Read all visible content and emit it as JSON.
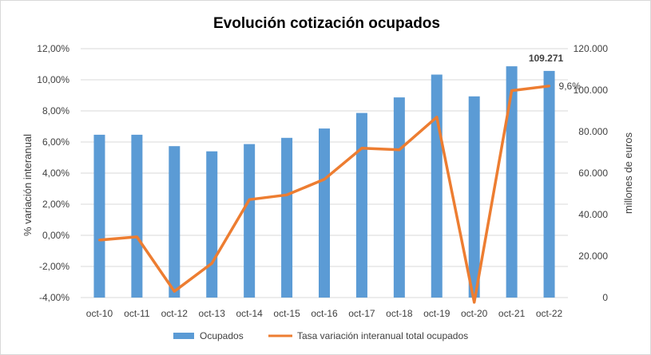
{
  "chart_data": {
    "type": "bar",
    "title": "Evolución cotización ocupados",
    "categories": [
      "oct-10",
      "oct-11",
      "oct-12",
      "oct-13",
      "oct-14",
      "oct-15",
      "oct-16",
      "oct-17",
      "oct-18",
      "oct-19",
      "oct-20",
      "oct-21",
      "oct-22"
    ],
    "series": [
      {
        "name": "Ocupados",
        "type": "bar",
        "axis": "right",
        "color": "#5B9BD5",
        "values": [
          78500,
          78500,
          73000,
          70500,
          74000,
          77000,
          81500,
          89000,
          96500,
          107500,
          97000,
          111500,
          109271
        ]
      },
      {
        "name": "Tasa variación interanual total ocupados",
        "type": "line",
        "axis": "left",
        "color": "#ED7D31",
        "values": [
          -0.3,
          -0.1,
          -3.6,
          -1.8,
          2.3,
          2.6,
          3.6,
          5.6,
          5.5,
          7.6,
          -4.3,
          9.3,
          9.6
        ]
      }
    ],
    "left_axis": {
      "label": "% variación interanual",
      "min": -4,
      "max": 12,
      "step": 2,
      "ticks": [
        "-4,00%",
        "-2,00%",
        "0,00%",
        "2,00%",
        "4,00%",
        "6,00%",
        "8,00%",
        "10,00%",
        "12,00%"
      ]
    },
    "right_axis": {
      "label": "millones de euros",
      "min": 0,
      "max": 120000,
      "step": 20000,
      "ticks": [
        "0",
        "20.000",
        "40.000",
        "60.000",
        "80.000",
        "100.000",
        "120.000"
      ]
    },
    "annotations": [
      {
        "text": "109.271",
        "series": "Ocupados",
        "category": "oct-22",
        "bold": true
      },
      {
        "text": "9,6%",
        "series": "Tasa variación interanual total ocupados",
        "category": "oct-22",
        "bold": false
      }
    ],
    "grid": true,
    "legend_position": "bottom",
    "legend": [
      "Ocupados",
      "Tasa variación interanual total ocupados"
    ]
  }
}
